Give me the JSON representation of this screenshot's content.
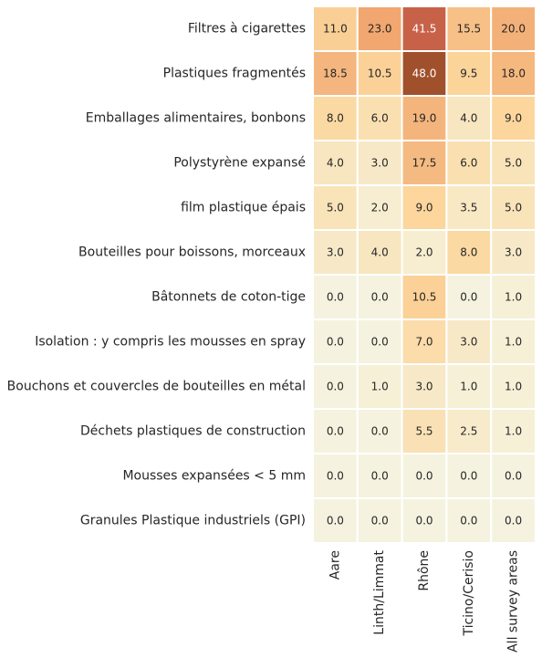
{
  "chart_data": {
    "type": "heatmap",
    "title": "",
    "xlabel": "",
    "ylabel": "",
    "rows": [
      "Filtres à cigarettes",
      "Plastiques fragmentés",
      "Emballages alimentaires, bonbons",
      "Polystyrène expansé",
      "film plastique épais",
      "Bouteilles pour boissons, morceaux",
      "Bâtonnets de coton-tige",
      "Isolation : y compris les mousses en spray",
      "Bouchons et couvercles de bouteilles en métal",
      "Déchets plastiques de construction",
      "Mousses expansées < 5 mm",
      "Granules Plastique industriels (GPI)"
    ],
    "columns": [
      "Aare",
      "Linth/Limmat",
      "Rhône",
      "Ticino/Cerisio",
      "All survey areas"
    ],
    "values": [
      [
        11.0,
        23.0,
        41.5,
        15.5,
        20.0
      ],
      [
        18.5,
        10.5,
        48.0,
        9.5,
        18.0
      ],
      [
        8.0,
        6.0,
        19.0,
        4.0,
        9.0
      ],
      [
        4.0,
        3.0,
        17.5,
        6.0,
        5.0
      ],
      [
        5.0,
        2.0,
        9.0,
        3.5,
        5.0
      ],
      [
        3.0,
        4.0,
        2.0,
        8.0,
        3.0
      ],
      [
        0.0,
        0.0,
        10.5,
        0.0,
        1.0
      ],
      [
        0.0,
        0.0,
        7.0,
        3.0,
        1.0
      ],
      [
        0.0,
        1.0,
        3.0,
        1.0,
        1.0
      ],
      [
        0.0,
        0.0,
        5.5,
        2.5,
        1.0
      ],
      [
        0.0,
        0.0,
        0.0,
        0.0,
        0.0
      ],
      [
        0.0,
        0.0,
        0.0,
        0.0,
        0.0
      ]
    ],
    "value_format": "0.0",
    "colorbar": false,
    "colors": {
      "low": "#f5f3df",
      "mid": "#fcd79d",
      "high": "#f0a46c",
      "peak": "#da6a55",
      "max": "#a0512c"
    }
  }
}
